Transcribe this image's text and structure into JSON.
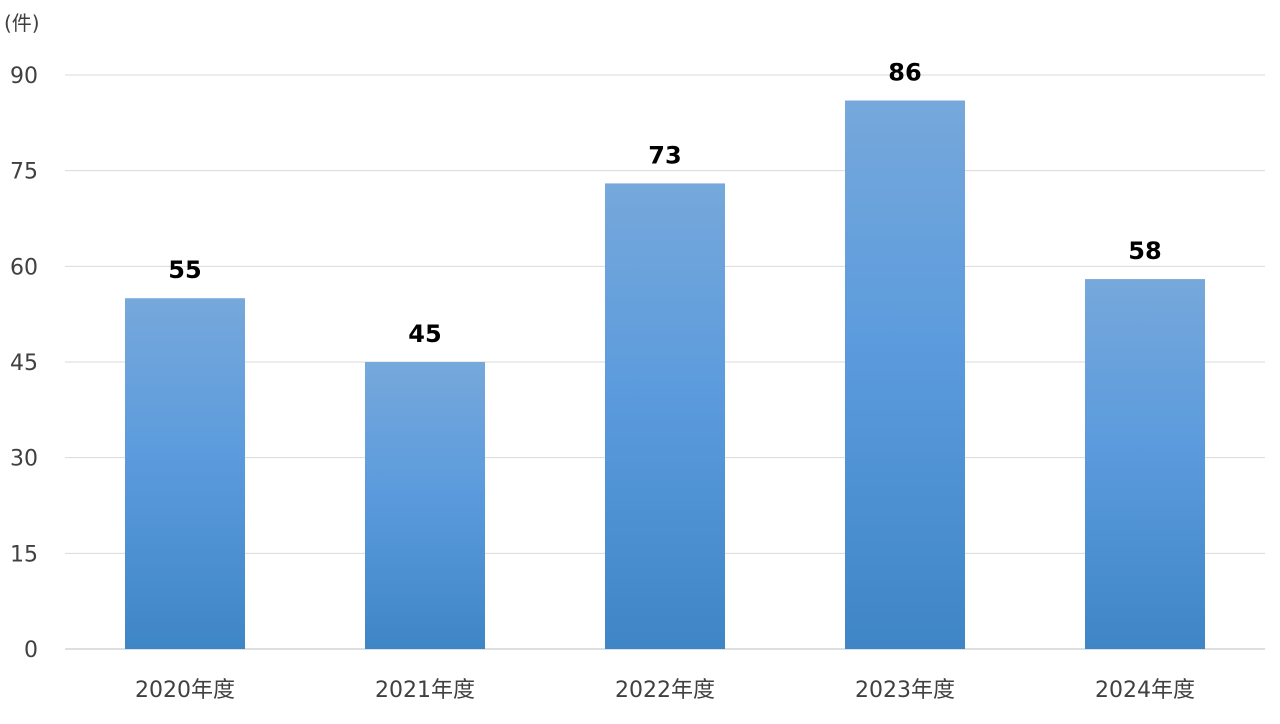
{
  "chart_data": {
    "type": "bar",
    "unit_label": "(件)",
    "categories": [
      "2020年度",
      "2021年度",
      "2022年度",
      "2023年度",
      "2024年度"
    ],
    "values": [
      55,
      45,
      73,
      86,
      58
    ],
    "ylim": [
      0,
      90
    ],
    "yticks": [
      0,
      15,
      30,
      45,
      60,
      75,
      90
    ],
    "grid": true,
    "data_labels": true,
    "colors": {
      "bar_top": "#76A8DB",
      "bar_mid": "#5B9BDD",
      "bar_bottom": "#3F86C6",
      "grid": "#D9D9D9",
      "axis": "#BFBFBF",
      "tick_text": "#404040",
      "label_text": "#000000"
    }
  }
}
